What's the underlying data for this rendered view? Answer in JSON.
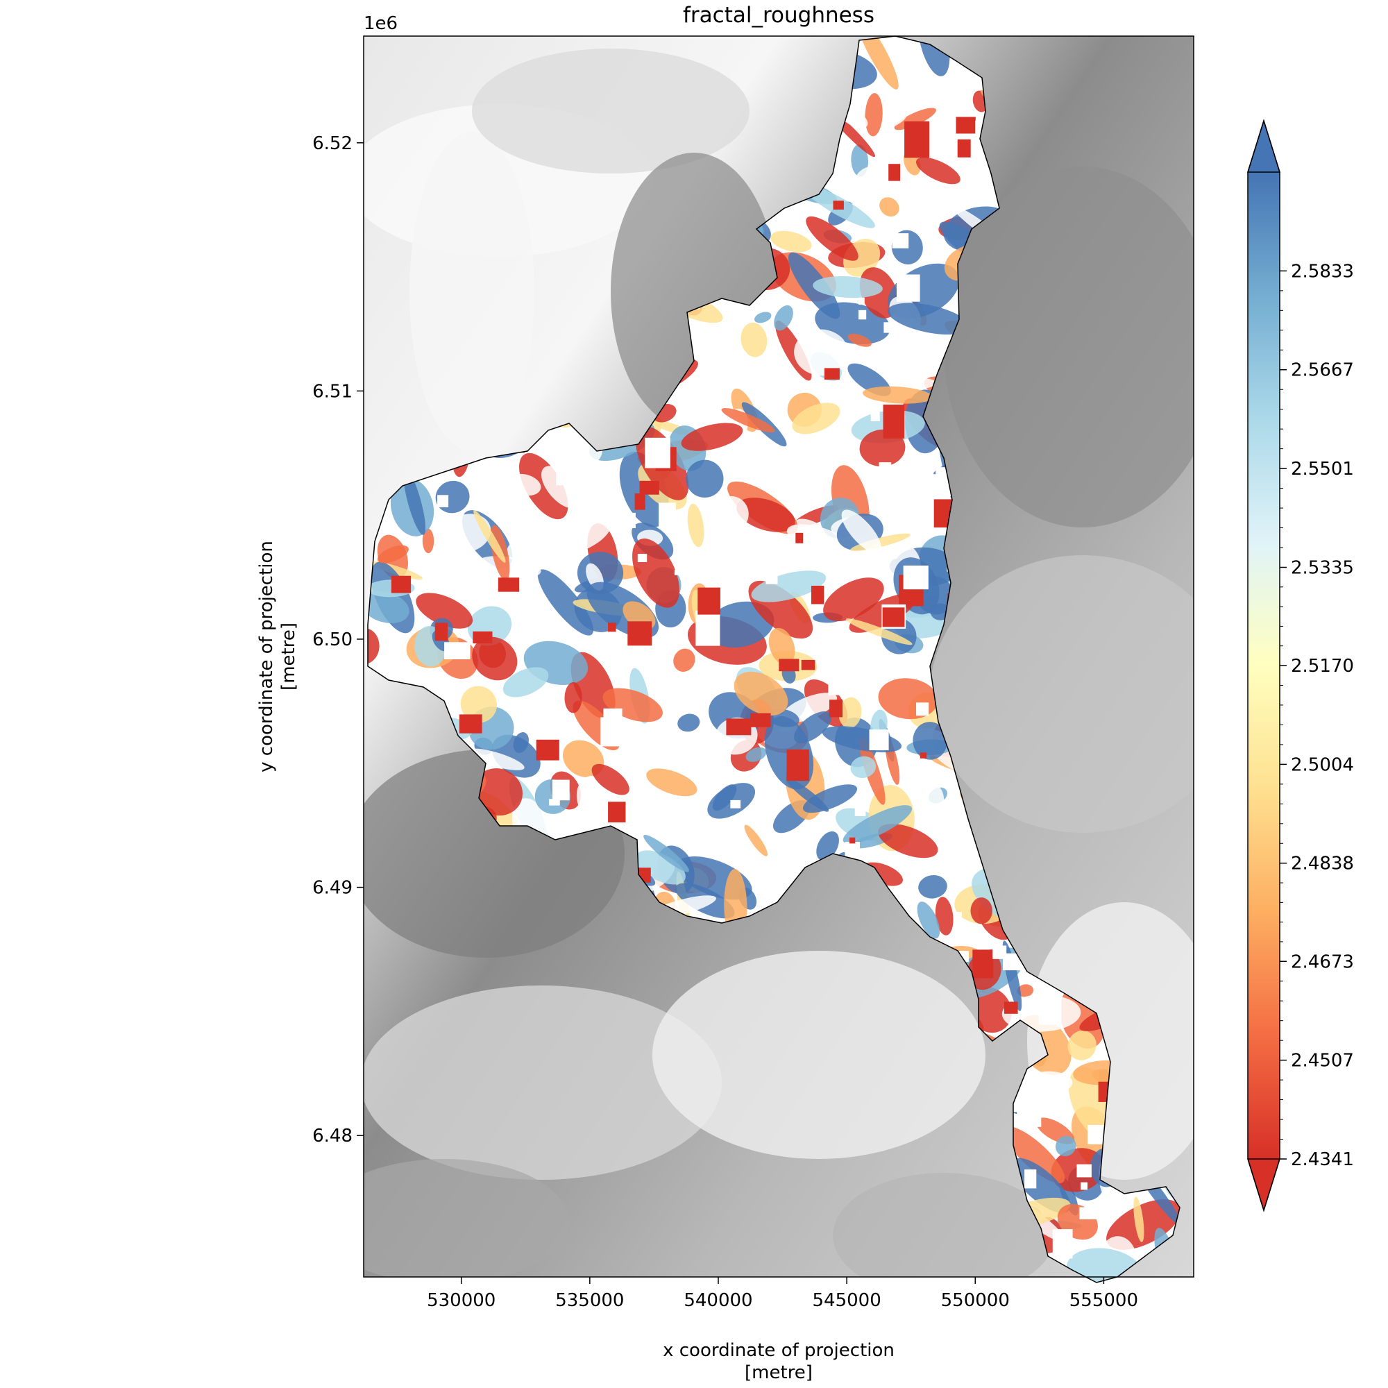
{
  "title": "fractal_roughness",
  "offset_text": "1e6",
  "x_axis": {
    "label_line1": "x coordinate of projection",
    "label_line2": "[metre]",
    "range": [
      526200,
      558500
    ],
    "ticks": [
      {
        "value": 530000,
        "label": "530000"
      },
      {
        "value": 535000,
        "label": "535000"
      },
      {
        "value": 540000,
        "label": "540000"
      },
      {
        "value": 545000,
        "label": "545000"
      },
      {
        "value": 550000,
        "label": "550000"
      },
      {
        "value": 555000,
        "label": "555000"
      }
    ]
  },
  "y_axis": {
    "label_line1": "y coordinate of projection",
    "label_line2": "[metre]",
    "range": [
      6474300,
      6524300
    ],
    "ticks": [
      {
        "value": 6520000,
        "label": "6.52"
      },
      {
        "value": 6510000,
        "label": "6.51"
      },
      {
        "value": 6500000,
        "label": "6.50"
      },
      {
        "value": 6490000,
        "label": "6.49"
      },
      {
        "value": 6480000,
        "label": "6.48"
      }
    ]
  },
  "colorbar": {
    "colormap": "RdYlBu",
    "extend": "both",
    "range": [
      2.4341,
      2.5999
    ],
    "ticks": [
      {
        "value": 2.4341,
        "label": "2.4341"
      },
      {
        "value": 2.4507,
        "label": "2.4507"
      },
      {
        "value": 2.4673,
        "label": "2.4673"
      },
      {
        "value": 2.4838,
        "label": "2.4838"
      },
      {
        "value": 2.5004,
        "label": "2.5004"
      },
      {
        "value": 2.517,
        "label": "2.5170"
      },
      {
        "value": 2.5335,
        "label": "2.5335"
      },
      {
        "value": 2.5501,
        "label": "2.5501"
      },
      {
        "value": 2.5667,
        "label": "2.5667"
      },
      {
        "value": 2.5833,
        "label": "2.5833"
      }
    ],
    "colors": [
      "#d73027",
      "#f46d43",
      "#fdae61",
      "#fee090",
      "#ffffbf",
      "#e0f3f8",
      "#abd9e9",
      "#74add1",
      "#4575b4"
    ]
  },
  "background": {
    "type": "grayscale elevation",
    "colors": [
      "#7a7a7a",
      "#b0b0b0",
      "#dcdcdc",
      "#f4f4f4"
    ]
  }
}
